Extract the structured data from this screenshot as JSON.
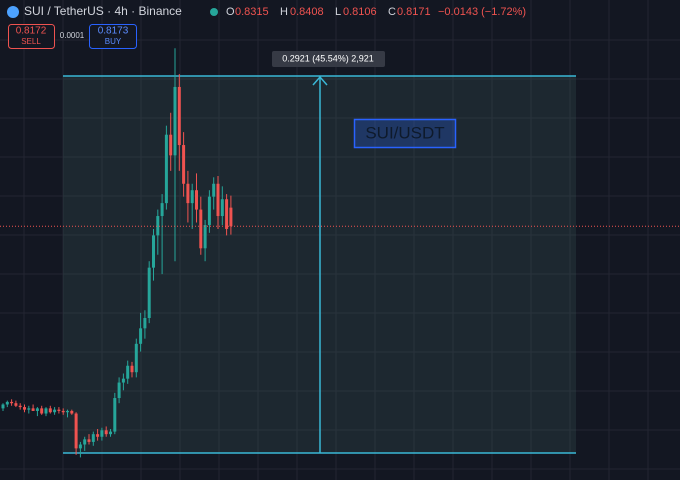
{
  "chart_data": {
    "type": "candlestick",
    "title": "SUI / TetherUS · 4h · Binance",
    "ohlc_labels": [
      "O",
      "H",
      "L",
      "C"
    ],
    "change": "−0.0143 (−1.72%)",
    "sell_price": 0.8172,
    "sell_label": "SELL",
    "spread": 0.0001,
    "buy_price": 0.8173,
    "buy_label": "BUY",
    "open": [
      0.676,
      0.679,
      0.681,
      0.68,
      0.678,
      0.677,
      0.675,
      0.676,
      0.674,
      0.676,
      0.672,
      0.676,
      0.673,
      0.675,
      0.674,
      0.673,
      0.674,
      0.672,
      0.645,
      0.648,
      0.652,
      0.65,
      0.656,
      0.654,
      0.659,
      0.656,
      0.658,
      0.684,
      0.696,
      0.699,
      0.709,
      0.704,
      0.726,
      0.738,
      0.746,
      0.785,
      0.81,
      0.825,
      0.835,
      0.888,
      0.872,
      0.925,
      0.88,
      0.85,
      0.835,
      0.845,
      0.83,
      0.8,
      0.818,
      0.84,
      0.85,
      0.825,
      0.838,
      0.8315
    ],
    "high": [
      0.68,
      0.682,
      0.683,
      0.682,
      0.68,
      0.679,
      0.678,
      0.679,
      0.677,
      0.678,
      0.677,
      0.678,
      0.677,
      0.677,
      0.676,
      0.675,
      0.675,
      0.673,
      0.65,
      0.654,
      0.656,
      0.658,
      0.66,
      0.661,
      0.662,
      0.66,
      0.688,
      0.7,
      0.703,
      0.713,
      0.712,
      0.73,
      0.75,
      0.752,
      0.79,
      0.815,
      0.83,
      0.842,
      0.895,
      0.905,
      0.955,
      0.935,
      0.89,
      0.86,
      0.85,
      0.858,
      0.84,
      0.822,
      0.845,
      0.855,
      0.856,
      0.848,
      0.842,
      0.8408
    ],
    "low": [
      0.674,
      0.677,
      0.678,
      0.677,
      0.675,
      0.673,
      0.672,
      0.674,
      0.67,
      0.671,
      0.67,
      0.672,
      0.671,
      0.672,
      0.671,
      0.669,
      0.671,
      0.64,
      0.638,
      0.643,
      0.648,
      0.647,
      0.651,
      0.651,
      0.654,
      0.654,
      0.656,
      0.68,
      0.69,
      0.695,
      0.7,
      0.7,
      0.72,
      0.73,
      0.742,
      0.775,
      0.795,
      0.78,
      0.83,
      0.86,
      0.79,
      0.86,
      0.84,
      0.82,
      0.815,
      0.82,
      0.795,
      0.79,
      0.812,
      0.83,
      0.815,
      0.818,
      0.81,
      0.8106
    ],
    "close": [
      0.679,
      0.681,
      0.68,
      0.678,
      0.677,
      0.675,
      0.676,
      0.674,
      0.676,
      0.672,
      0.676,
      0.673,
      0.675,
      0.674,
      0.673,
      0.674,
      0.672,
      0.645,
      0.648,
      0.652,
      0.65,
      0.656,
      0.654,
      0.659,
      0.656,
      0.658,
      0.684,
      0.696,
      0.699,
      0.709,
      0.704,
      0.726,
      0.738,
      0.746,
      0.785,
      0.81,
      0.825,
      0.835,
      0.888,
      0.872,
      0.925,
      0.88,
      0.85,
      0.835,
      0.845,
      0.83,
      0.8,
      0.818,
      0.84,
      0.85,
      0.825,
      0.838,
      0.815,
      0.8171
    ],
    "up_color": "#26a69a",
    "down_color": "#ef5350",
    "ylim": [
      0.6205,
      0.9575
    ],
    "grid": true,
    "measure": {
      "from": 0.6414,
      "to": 0.9335,
      "label": "0.2921 (45.54%) 2,921"
    },
    "annotation": "SUI/USDT"
  }
}
